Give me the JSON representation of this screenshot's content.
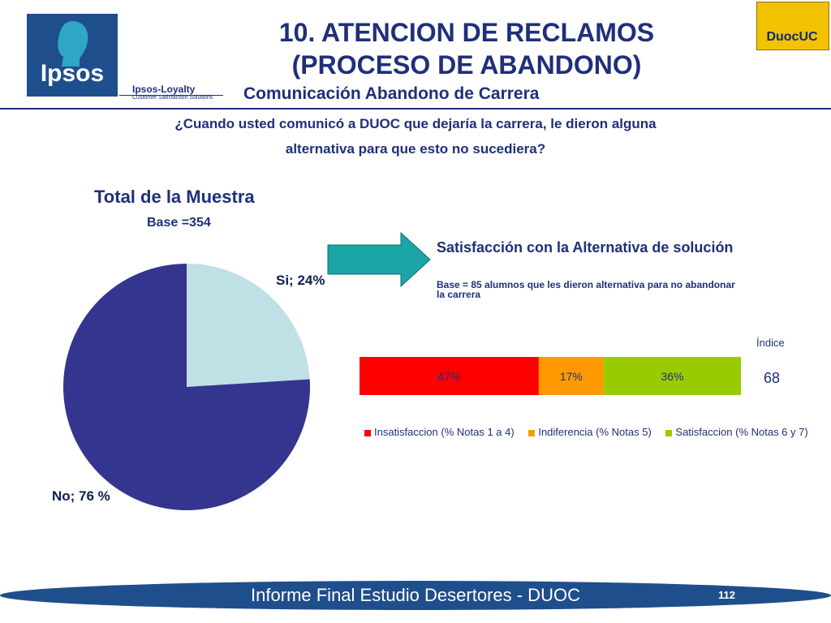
{
  "branding": {
    "ipsos_logo": "Ipsos",
    "loyalty_name": "Ipsos-Loyalty",
    "loyalty_tagline": "Customer Satisfaction Solutions",
    "duoc_logo": "DuocUC",
    "brand_color": "#1f4e8c"
  },
  "header": {
    "title_line1": "10. ATENCION DE RECLAMOS",
    "title_line2": "(PROCESO DE ABANDONO)",
    "subtitle": "Comunicación Abandono de Carrera"
  },
  "question": {
    "line1": "¿Cuando usted comunicó a DUOC que dejaría la carrera, le dieron alguna",
    "line2": "alternativa para que esto no sucediera?"
  },
  "left_panel": {
    "title": "Total de la Muestra",
    "base": "Base =354"
  },
  "right_panel": {
    "title": "Satisfacción con la Alternativa de solución",
    "base": "Base = 85 alumnos que les dieron alternativa para no abandonar la carrera",
    "indice_label": "Índice",
    "indice_value": "68"
  },
  "chart_data": [
    {
      "type": "pie",
      "slices": [
        {
          "label": "Si",
          "value": 24,
          "display": "Si; 24%",
          "color": "#bfe0e4"
        },
        {
          "label": "No",
          "value": 76,
          "display": "No; 76 %",
          "color": "#34358f"
        }
      ]
    },
    {
      "type": "bar",
      "orientation": "horizontal-stacked",
      "series": [
        {
          "name": "Insatisfaccion (% Notas 1 a 4)",
          "value": 47,
          "display": "47%",
          "color": "#ff0000"
        },
        {
          "name": "Indiferencia (% Notas 5)",
          "value": 17,
          "display": "17%",
          "color": "#ff9900"
        },
        {
          "name": "Satisfaccion (% Notas 6 y 7)",
          "value": 36,
          "display": "36%",
          "color": "#99cc00"
        }
      ],
      "legend_position": "bottom"
    }
  ],
  "footer": {
    "text": "Informe Final Estudio Desertores - DUOC",
    "page": "112"
  }
}
